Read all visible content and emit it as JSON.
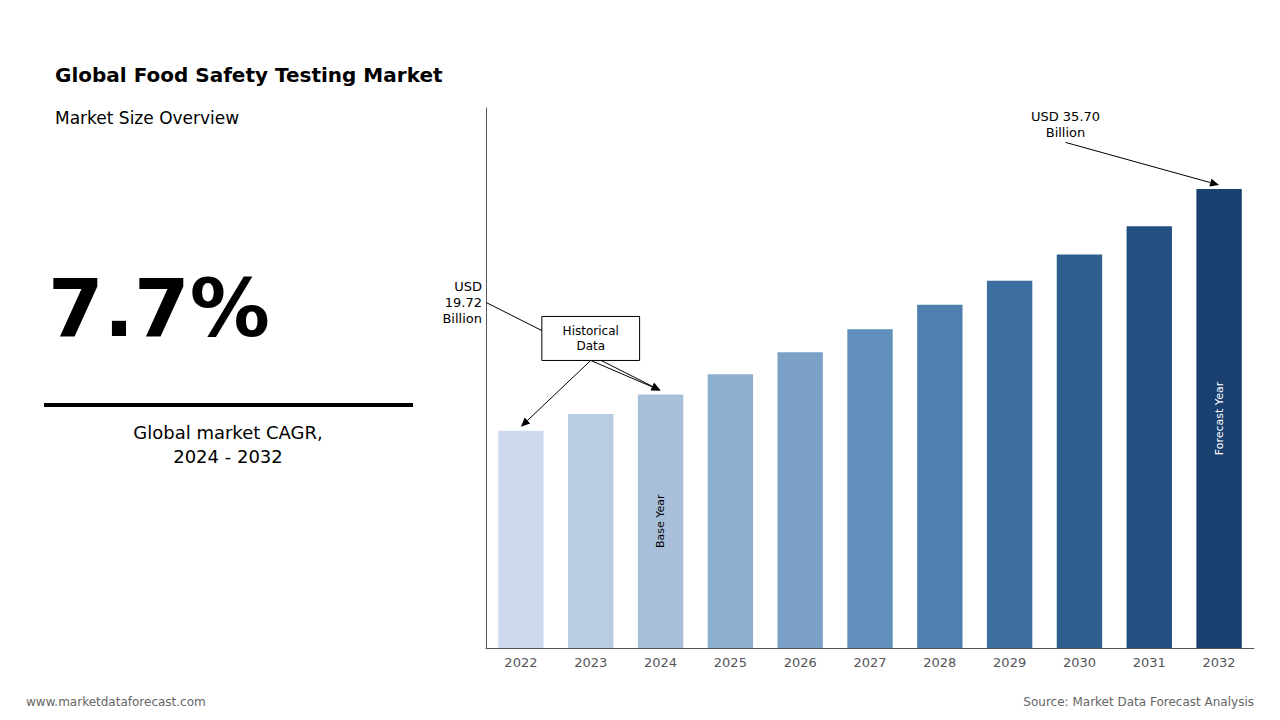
{
  "chart_data": {
    "type": "bar",
    "title": "Global Food Safety Testing Market",
    "subtitle": "Market Size Overview",
    "categories": [
      "2022",
      "2023",
      "2024",
      "2025",
      "2026",
      "2027",
      "2028",
      "2029",
      "2030",
      "2031",
      "2032"
    ],
    "values": [
      16.9,
      18.2,
      19.72,
      21.3,
      23.0,
      24.8,
      26.7,
      28.57,
      30.6,
      32.8,
      35.7
    ],
    "colors": [
      "#cdd9ed",
      "#b8cce4",
      "#a8bfda",
      "#8caecf",
      "#7aa1c5",
      "#6090bb",
      "#4f7fae",
      "#3d6ea0",
      "#2f5f8e",
      "#235080",
      "#1a4070"
    ],
    "ylim": [
      0,
      42
    ],
    "grid": false,
    "tick_labels": "x",
    "annotations": [
      {
        "text": "Base Year",
        "x": "2024"
      },
      {
        "text": "Forecast Year",
        "x": "2032"
      },
      {
        "text": "Historical\nData",
        "x": [
          "2022",
          "2024"
        ]
      },
      {
        "text": "USD\n19.72\nBillion",
        "x": "2024"
      },
      {
        "text": "USD 35.70\nBillion",
        "x": "2032"
      }
    ],
    "headline": "7.7%",
    "headline_label": "Global market CAGR,\n2024 - 2032",
    "footer_left": "www.marketdataforecast.com",
    "footer_right": "Source: Market Data Forecast Analysis"
  }
}
